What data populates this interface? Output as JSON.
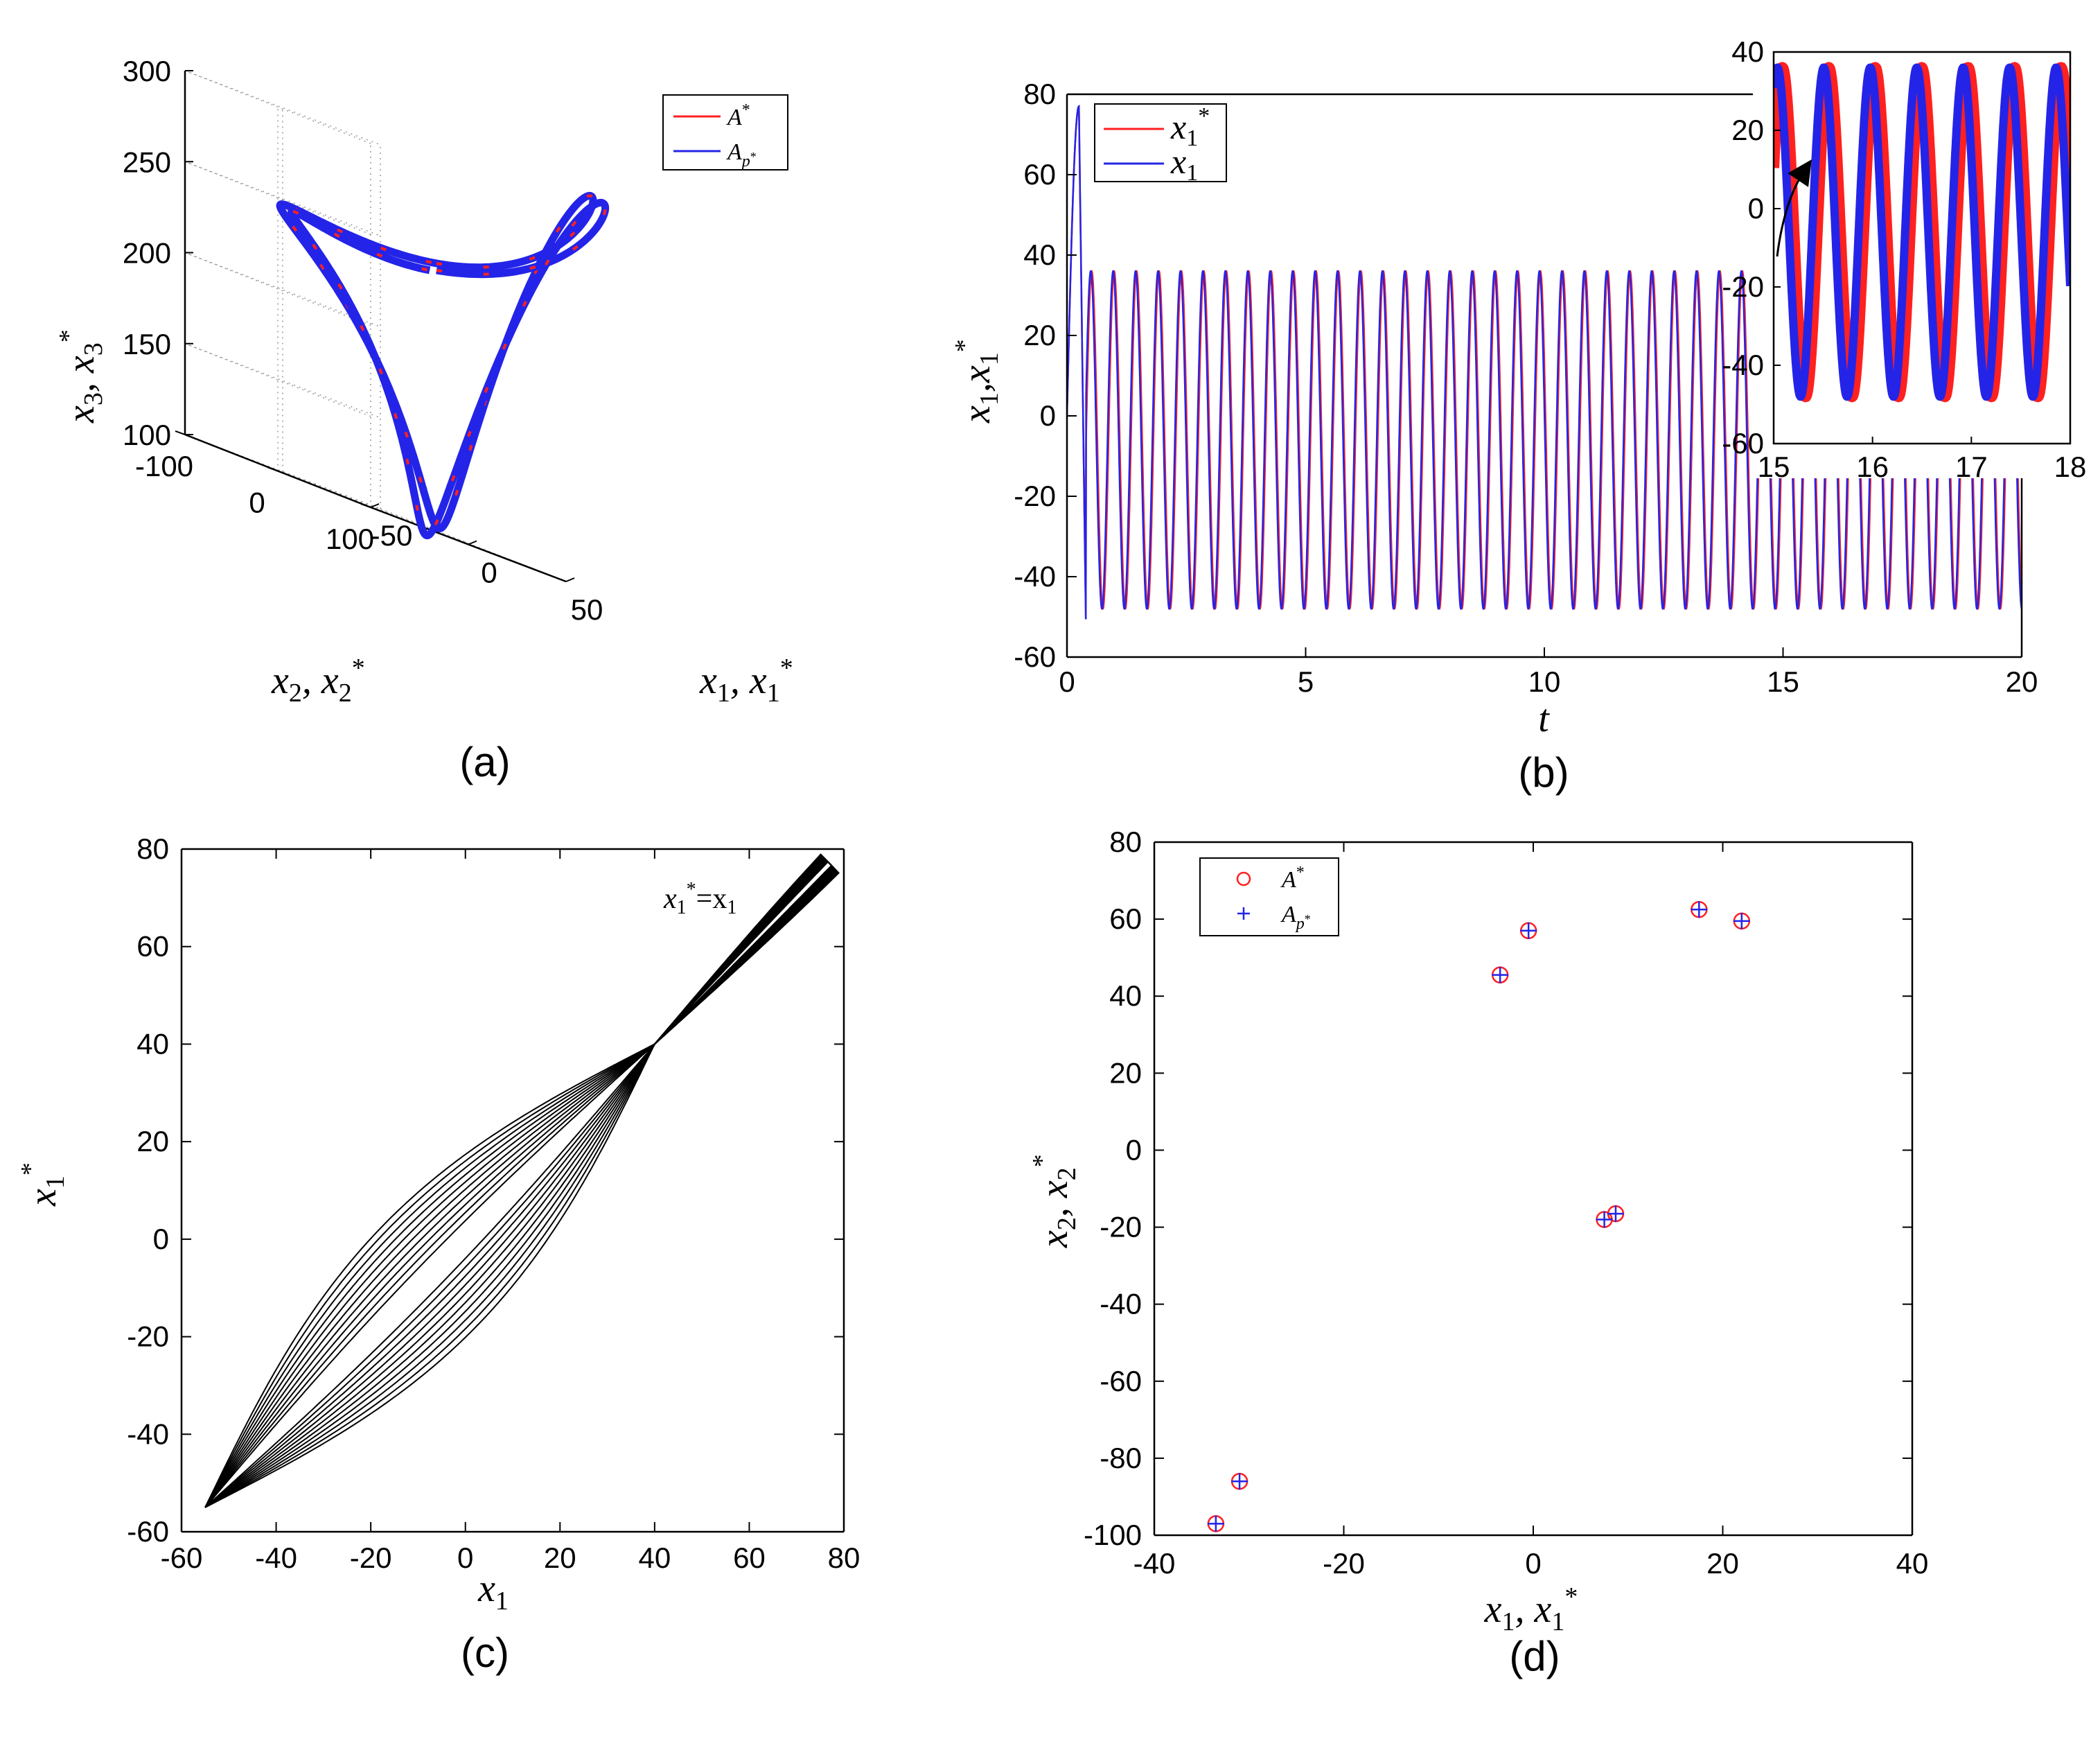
{
  "colors": {
    "red": "#ff2020",
    "blue": "#2424e8",
    "black": "#000000",
    "grid": "#999999"
  },
  "panel_labels": [
    "(a)",
    "(b)",
    "(c)",
    "(d)"
  ],
  "chart_data": [
    {
      "panel": "(a)",
      "type": "line",
      "projection": "3d",
      "xlabel": "x1, x1*",
      "ylabel": "x2, x2*",
      "zlabel": "x3, x3*",
      "x_ticks": [
        "-50",
        "0",
        "50"
      ],
      "y_ticks": [
        "100",
        "0",
        "-100"
      ],
      "z_ticks": [
        "100",
        "150",
        "200",
        "250",
        "300"
      ],
      "xlim": [
        -50,
        50
      ],
      "ylim": [
        -100,
        100
      ],
      "zlim": [
        100,
        300
      ],
      "grid": true,
      "legend": {
        "placement": "top-right",
        "entries": [
          "A*",
          "Ap*"
        ]
      },
      "series": [
        {
          "name": "A*",
          "color": "red",
          "description": "limit cycle trajectory, overlaid"
        },
        {
          "name": "Ap*",
          "color": "blue"
        }
      ]
    },
    {
      "panel": "(b)",
      "type": "line",
      "xlabel": "t",
      "ylabel": "x1,x1*",
      "x_ticks": [
        "0",
        "5",
        "10",
        "15",
        "20"
      ],
      "y_ticks": [
        "80",
        "60",
        "40",
        "20",
        "0",
        "-20",
        "-40",
        "-60"
      ],
      "xlim": [
        0,
        20
      ],
      "ylim": [
        -60,
        80
      ],
      "period": 0.47,
      "max": 36,
      "min": -48,
      "initial_peak": 77,
      "initial_trough": -55,
      "legend": {
        "placement": "top-left",
        "entries": [
          "x1*",
          "x1"
        ]
      },
      "series": [
        {
          "name": "x1*",
          "color": "red"
        },
        {
          "name": "x1",
          "color": "blue"
        }
      ],
      "inset": {
        "xlim": [
          15,
          18
        ],
        "ylim": [
          -60,
          40
        ],
        "x_ticks": [
          "15",
          "16",
          "17",
          "18"
        ],
        "y_ticks": [
          "40",
          "20",
          "0",
          "-20",
          "-40",
          "-60"
        ]
      }
    },
    {
      "panel": "(c)",
      "type": "line",
      "xlabel": "x1",
      "ylabel": "x1*",
      "x_ticks": [
        "-60",
        "-40",
        "-20",
        "0",
        "20",
        "40",
        "60",
        "80"
      ],
      "y_ticks": [
        "80",
        "60",
        "40",
        "20",
        "0",
        "-20",
        "-40",
        "-60"
      ],
      "xlim": [
        -60,
        80
      ],
      "ylim": [
        -60,
        80
      ],
      "annotation": "x1*=x1",
      "line_range": [
        -55,
        77
      ]
    },
    {
      "panel": "(d)",
      "type": "scatter",
      "xlabel": "x1, x1*",
      "ylabel": "x2, x2*",
      "x_ticks": [
        "-40",
        "-20",
        "0",
        "20",
        "40"
      ],
      "y_ticks": [
        "80",
        "60",
        "40",
        "20",
        "0",
        "-20",
        "-40",
        "-60",
        "-80",
        "-100"
      ],
      "xlim": [
        -40,
        40
      ],
      "ylim": [
        -100,
        80
      ],
      "legend": {
        "placement": "top-left",
        "entries": [
          "A*",
          "Ap*"
        ]
      },
      "series": [
        {
          "name": "A*",
          "marker": "circle",
          "color": "red",
          "x": [
            -33.5,
            -31.0,
            -3.5,
            -0.5,
            7.5,
            8.7,
            17.5,
            22.0
          ],
          "y": [
            -97.0,
            -86.0,
            45.5,
            57.0,
            -18.0,
            -16.5,
            62.5,
            59.5
          ]
        },
        {
          "name": "Ap*",
          "marker": "plus",
          "color": "blue",
          "x": [
            -33.5,
            -31.0,
            -3.5,
            -0.5,
            7.5,
            8.7,
            17.5,
            22.0
          ],
          "y": [
            -97.0,
            -86.0,
            45.5,
            57.0,
            -18.0,
            -16.5,
            62.5,
            59.5
          ]
        }
      ]
    }
  ]
}
